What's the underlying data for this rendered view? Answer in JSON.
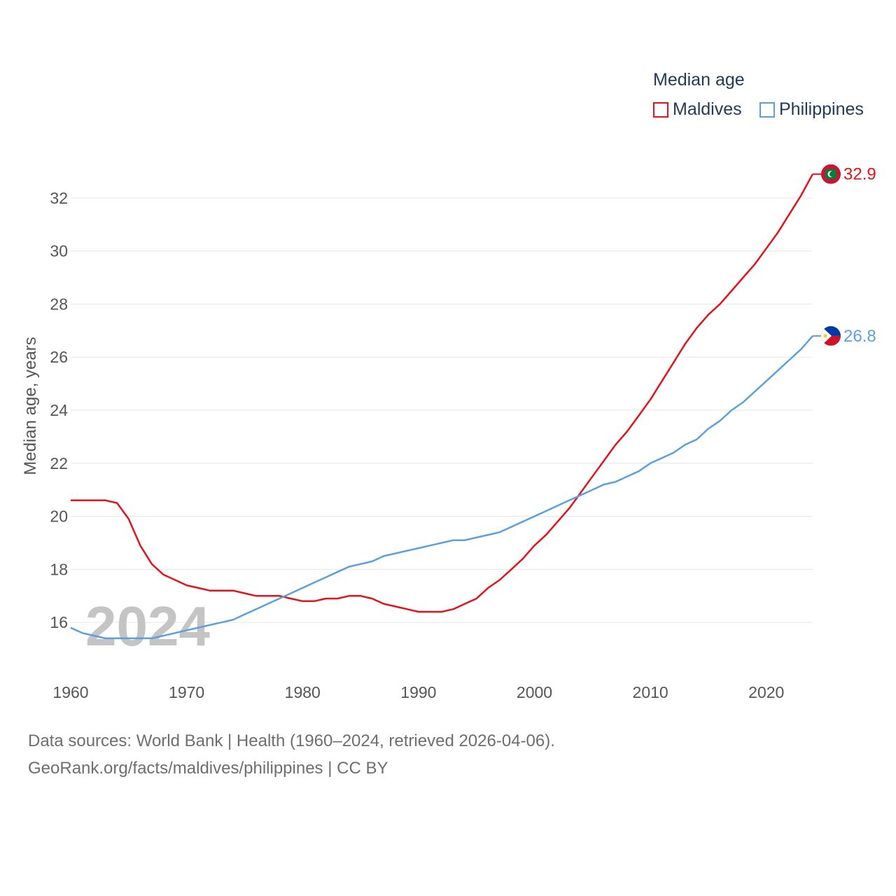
{
  "chart_data": {
    "type": "line",
    "legend_title": "Median age",
    "ylabel": "Median age, years",
    "xlabel": "",
    "xlim": [
      1960,
      2024
    ],
    "ylim": [
      14.5,
      33.5
    ],
    "x_ticks": [
      1960,
      1970,
      1980,
      1990,
      2000,
      2010,
      2020
    ],
    "y_ticks": [
      16,
      18,
      20,
      22,
      24,
      26,
      28,
      30,
      32
    ],
    "watermark_year": "2024",
    "series": [
      {
        "name": "Maldives",
        "color": "#e3121b",
        "end_label": "32.9",
        "flag": "maldives-flag",
        "x": [
          1960,
          1961,
          1962,
          1963,
          1964,
          1965,
          1966,
          1967,
          1968,
          1969,
          1970,
          1971,
          1972,
          1973,
          1974,
          1975,
          1976,
          1977,
          1978,
          1979,
          1980,
          1981,
          1982,
          1983,
          1984,
          1985,
          1986,
          1987,
          1988,
          1989,
          1990,
          1991,
          1992,
          1993,
          1994,
          1995,
          1996,
          1997,
          1998,
          1999,
          2000,
          2001,
          2002,
          2003,
          2004,
          2005,
          2006,
          2007,
          2008,
          2009,
          2010,
          2011,
          2012,
          2013,
          2014,
          2015,
          2016,
          2017,
          2018,
          2019,
          2020,
          2021,
          2022,
          2023,
          2024
        ],
        "values": [
          20.6,
          20.6,
          20.6,
          20.6,
          20.5,
          19.9,
          18.9,
          18.2,
          17.8,
          17.6,
          17.4,
          17.3,
          17.2,
          17.2,
          17.2,
          17.1,
          17.0,
          17.0,
          17.0,
          16.9,
          16.8,
          16.8,
          16.9,
          16.9,
          17.0,
          17.0,
          16.9,
          16.7,
          16.6,
          16.5,
          16.4,
          16.4,
          16.4,
          16.5,
          16.7,
          16.9,
          17.3,
          17.6,
          18.0,
          18.4,
          18.9,
          19.3,
          19.8,
          20.3,
          20.9,
          21.5,
          22.1,
          22.7,
          23.2,
          23.8,
          24.4,
          25.1,
          25.8,
          26.5,
          27.1,
          27.6,
          28.0,
          28.5,
          29.0,
          29.5,
          30.1,
          30.7,
          31.4,
          32.1,
          32.9
        ]
      },
      {
        "name": "Philippines",
        "color": "#5b9fe0",
        "end_label": "26.8",
        "flag": "philippines-flag",
        "x": [
          1960,
          1961,
          1962,
          1963,
          1964,
          1965,
          1966,
          1967,
          1968,
          1969,
          1970,
          1971,
          1972,
          1973,
          1974,
          1975,
          1976,
          1977,
          1978,
          1979,
          1980,
          1981,
          1982,
          1983,
          1984,
          1985,
          1986,
          1987,
          1988,
          1989,
          1990,
          1991,
          1992,
          1993,
          1994,
          1995,
          1996,
          1997,
          1998,
          1999,
          2000,
          2001,
          2002,
          2003,
          2004,
          2005,
          2006,
          2007,
          2008,
          2009,
          2010,
          2011,
          2012,
          2013,
          2014,
          2015,
          2016,
          2017,
          2018,
          2019,
          2020,
          2021,
          2022,
          2023,
          2024
        ],
        "values": [
          15.8,
          15.6,
          15.5,
          15.4,
          15.4,
          15.4,
          15.4,
          15.4,
          15.5,
          15.6,
          15.7,
          15.8,
          15.9,
          16.0,
          16.1,
          16.3,
          16.5,
          16.7,
          16.9,
          17.1,
          17.3,
          17.5,
          17.7,
          17.9,
          18.1,
          18.2,
          18.3,
          18.5,
          18.6,
          18.7,
          18.8,
          18.9,
          19.0,
          19.1,
          19.1,
          19.2,
          19.3,
          19.4,
          19.6,
          19.8,
          20.0,
          20.2,
          20.4,
          20.6,
          20.8,
          21.0,
          21.2,
          21.3,
          21.5,
          21.7,
          22.0,
          22.2,
          22.4,
          22.7,
          22.9,
          23.3,
          23.6,
          24.0,
          24.3,
          24.7,
          25.1,
          25.5,
          25.9,
          26.3,
          26.8
        ]
      }
    ]
  },
  "source": {
    "line1": "Data sources: World Bank | Health (1960–2024, retrieved 2026-04-06).",
    "line2": "GeoRank.org/facts/maldives/philippines | CC BY"
  }
}
